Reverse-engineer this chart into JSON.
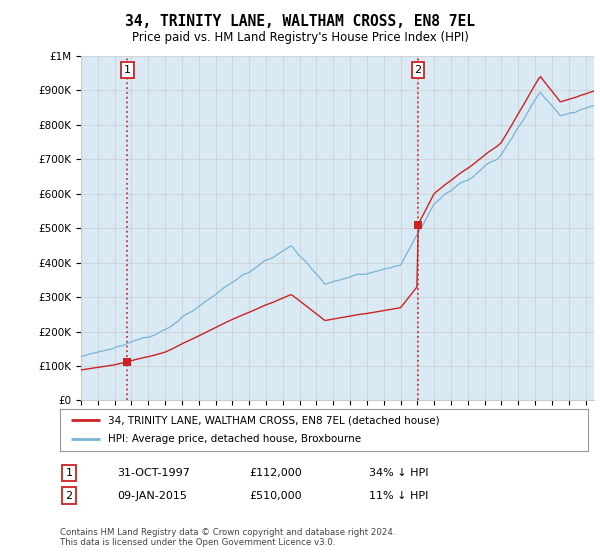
{
  "title": "34, TRINITY LANE, WALTHAM CROSS, EN8 7EL",
  "subtitle": "Price paid vs. HM Land Registry's House Price Index (HPI)",
  "ylim": [
    0,
    1000000
  ],
  "yticks": [
    0,
    100000,
    200000,
    300000,
    400000,
    500000,
    600000,
    700000,
    800000,
    900000,
    1000000
  ],
  "ytick_labels": [
    "£0",
    "£100K",
    "£200K",
    "£300K",
    "£400K",
    "£500K",
    "£600K",
    "£700K",
    "£800K",
    "£900K",
    "£1M"
  ],
  "hpi_color": "#7ab3d4",
  "hpi_fill_color": "#daeaf5",
  "price_color": "#cc2222",
  "marker_color": "#cc2222",
  "grid_color": "#cccccc",
  "bg_color": "#ffffff",
  "chart_bg_color": "#daeaf5",
  "purchase1_year": 1997.75,
  "purchase1_price": 112000,
  "purchase1_label": "1",
  "purchase2_year": 2015.03,
  "purchase2_price": 510000,
  "purchase2_label": "2",
  "legend_line1": "34, TRINITY LANE, WALTHAM CROSS, EN8 7EL (detached house)",
  "legend_line2": "HPI: Average price, detached house, Broxbourne",
  "table_row1": [
    "1",
    "31-OCT-1997",
    "£112,000",
    "34% ↓ HPI"
  ],
  "table_row2": [
    "2",
    "09-JAN-2015",
    "£510,000",
    "11% ↓ HPI"
  ],
  "footnote": "Contains HM Land Registry data © Crown copyright and database right 2024.\nThis data is licensed under the Open Government Licence v3.0.",
  "xmin": 1995,
  "xmax": 2025.5
}
